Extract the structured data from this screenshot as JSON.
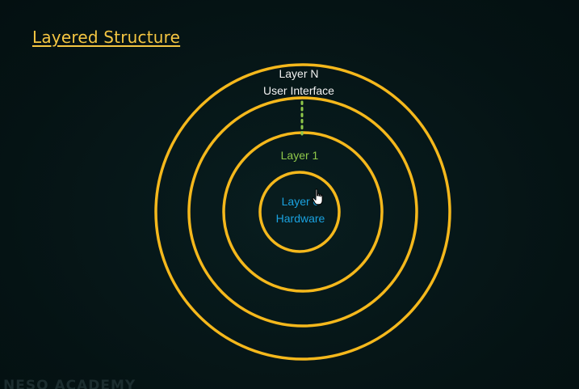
{
  "slide": {
    "title": "Layered Structure",
    "watermark": "NESO ACADEMY"
  },
  "diagram": {
    "rings": 4,
    "ring_color": "#f5b81c",
    "connector": "dotted",
    "connector_color": "#8fc84a",
    "layers": [
      {
        "name": "Layer N",
        "description": "User Interface",
        "color": "#f2f2f2"
      },
      {
        "name": "Layer 1",
        "description": "",
        "color": "#8fc84a"
      },
      {
        "name": "Layer 0",
        "description": "Hardware",
        "color": "#1aa2e0"
      }
    ]
  },
  "cursor": {
    "icon": "hand-pointer-icon"
  }
}
